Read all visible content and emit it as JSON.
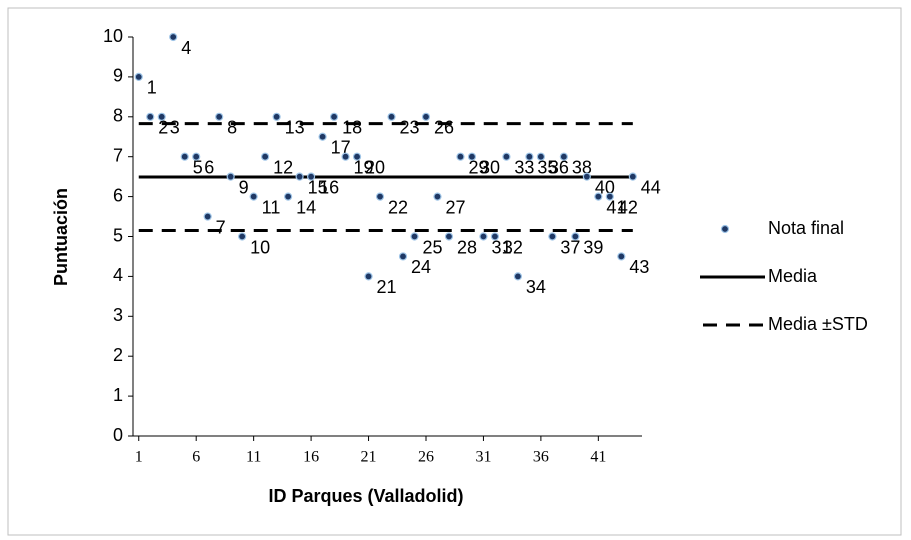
{
  "chart_data": {
    "type": "scatter",
    "x_label": "ID Parques (Valladolid)",
    "y_label": "Puntuación",
    "x": [
      1,
      2,
      3,
      4,
      5,
      6,
      7,
      8,
      9,
      10,
      11,
      12,
      13,
      14,
      15,
      16,
      17,
      18,
      19,
      20,
      21,
      22,
      23,
      24,
      25,
      26,
      27,
      28,
      29,
      30,
      31,
      32,
      33,
      34,
      35,
      36,
      37,
      38,
      39,
      40,
      41,
      42,
      43,
      44
    ],
    "series": [
      {
        "name": "Nota final",
        "color": "#1f3864",
        "values": [
          9,
          8,
          8,
          10,
          7,
          7,
          5.5,
          8,
          6.5,
          5,
          6,
          7,
          8,
          6,
          6.5,
          6.5,
          7.5,
          8,
          7,
          7,
          4,
          6,
          8,
          4.5,
          5,
          8,
          6,
          5,
          7,
          7,
          5,
          5,
          7,
          4,
          7,
          7,
          5,
          7,
          5,
          6.5,
          6,
          6,
          4.5,
          6.5
        ]
      },
      {
        "name": "Media",
        "color": "#000000",
        "values": [
          6.49
        ]
      },
      {
        "name": "Media ±STD",
        "color": "#000000",
        "values": [
          7.83,
          5.15
        ]
      }
    ],
    "xlim": [
      0.5,
      44.8
    ],
    "xticks": [
      1,
      6,
      11,
      16,
      21,
      26,
      31,
      36,
      41
    ],
    "ylim": [
      0,
      10
    ],
    "yticks": [
      0,
      1,
      2,
      3,
      4,
      5,
      6,
      7,
      8,
      9,
      10
    ],
    "grid": false,
    "legend": "right"
  }
}
